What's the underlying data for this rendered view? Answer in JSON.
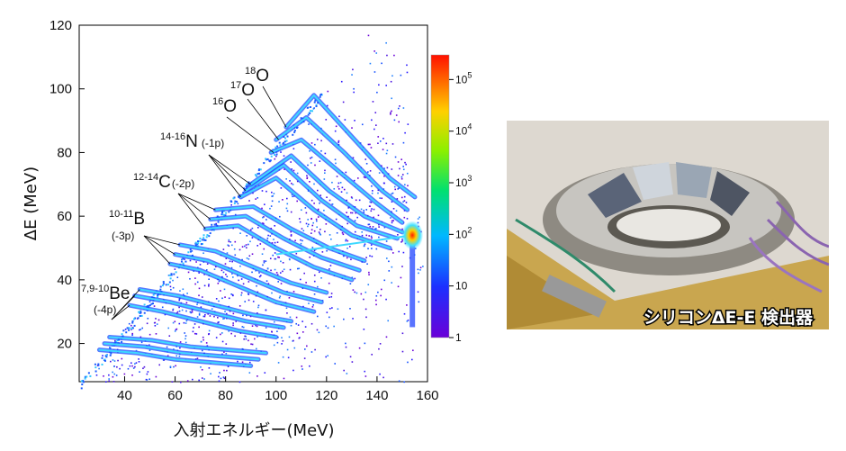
{
  "chart_data": {
    "type": "heatmap",
    "title": "",
    "xlabel": "入射エネルギー(MeV)",
    "ylabel": "ΔE (MeV)",
    "xlim": [
      22,
      160
    ],
    "ylim": [
      8,
      120
    ],
    "x_ticks": [
      40,
      60,
      80,
      100,
      120,
      140,
      160
    ],
    "y_ticks": [
      20,
      40,
      60,
      80,
      100,
      120
    ],
    "colorbar": {
      "scale": "log",
      "range": [
        1,
        300000
      ],
      "ticks": [
        {
          "value": 1,
          "base": "1",
          "exp": ""
        },
        {
          "value": 10,
          "base": "10",
          "exp": ""
        },
        {
          "value": 100,
          "base": "10",
          "exp": "2"
        },
        {
          "value": 1000,
          "base": "10",
          "exp": "3"
        },
        {
          "value": 10000,
          "base": "10",
          "exp": "4"
        },
        {
          "value": 100000,
          "base": "10",
          "exp": "5"
        }
      ]
    },
    "cutoff_line": {
      "x": [
        22,
        118
      ],
      "y": [
        8,
        100
      ]
    },
    "ridges": [
      {
        "group": "O",
        "points": [
          [
            98,
            80
          ],
          [
            110,
            84
          ],
          [
            125,
            74
          ],
          [
            140,
            64
          ],
          [
            150,
            58
          ]
        ]
      },
      {
        "group": "O",
        "points": [
          [
            100,
            84
          ],
          [
            112,
            91
          ],
          [
            127,
            80
          ],
          [
            142,
            68
          ],
          [
            152,
            62
          ]
        ]
      },
      {
        "group": "O",
        "points": [
          [
            104,
            88
          ],
          [
            115,
            98
          ],
          [
            130,
            85
          ],
          [
            145,
            72
          ],
          [
            155,
            66
          ]
        ]
      },
      {
        "group": "N",
        "points": [
          [
            86,
            66
          ],
          [
            100,
            72
          ],
          [
            115,
            62
          ],
          [
            130,
            54
          ],
          [
            145,
            50
          ]
        ]
      },
      {
        "group": "N",
        "points": [
          [
            88,
            68
          ],
          [
            103,
            76
          ],
          [
            118,
            65
          ],
          [
            132,
            57
          ],
          [
            148,
            53
          ]
        ]
      },
      {
        "group": "N",
        "points": [
          [
            90,
            70
          ],
          [
            106,
            79
          ],
          [
            121,
            68
          ],
          [
            135,
            60
          ],
          [
            150,
            55
          ]
        ]
      },
      {
        "group": "C",
        "points": [
          [
            72,
            56
          ],
          [
            85,
            57
          ],
          [
            100,
            50
          ],
          [
            115,
            44
          ],
          [
            130,
            40
          ]
        ]
      },
      {
        "group": "C",
        "points": [
          [
            74,
            59
          ],
          [
            88,
            60
          ],
          [
            103,
            53
          ],
          [
            118,
            47
          ],
          [
            133,
            43
          ]
        ]
      },
      {
        "group": "C",
        "points": [
          [
            76,
            62
          ],
          [
            91,
            63
          ],
          [
            106,
            56
          ],
          [
            121,
            50
          ],
          [
            135,
            46
          ]
        ]
      },
      {
        "group": "B",
        "points": [
          [
            58,
            45
          ],
          [
            70,
            43
          ],
          [
            85,
            38
          ],
          [
            100,
            33
          ],
          [
            115,
            30
          ]
        ]
      },
      {
        "group": "B",
        "points": [
          [
            60,
            48
          ],
          [
            73,
            46
          ],
          [
            88,
            41
          ],
          [
            103,
            36
          ],
          [
            118,
            33
          ]
        ]
      },
      {
        "group": "B",
        "points": [
          [
            62,
            51
          ],
          [
            76,
            49
          ],
          [
            91,
            44
          ],
          [
            106,
            39
          ],
          [
            120,
            36
          ]
        ]
      },
      {
        "group": "Be",
        "points": [
          [
            42,
            32
          ],
          [
            55,
            30
          ],
          [
            70,
            27
          ],
          [
            85,
            24
          ],
          [
            100,
            22
          ]
        ]
      },
      {
        "group": "Be",
        "points": [
          [
            44,
            35
          ],
          [
            58,
            33
          ],
          [
            73,
            30
          ],
          [
            88,
            27
          ],
          [
            103,
            25
          ]
        ]
      },
      {
        "group": "Be",
        "points": [
          [
            46,
            37
          ],
          [
            61,
            35
          ],
          [
            76,
            32
          ],
          [
            91,
            29
          ],
          [
            106,
            27
          ]
        ]
      },
      {
        "group": "low",
        "points": [
          [
            30,
            18
          ],
          [
            45,
            17
          ],
          [
            60,
            15
          ],
          [
            75,
            14
          ],
          [
            90,
            13
          ]
        ]
      },
      {
        "group": "low",
        "points": [
          [
            32,
            20
          ],
          [
            48,
            19
          ],
          [
            63,
            17
          ],
          [
            78,
            16
          ],
          [
            93,
            15
          ]
        ]
      },
      {
        "group": "low",
        "points": [
          [
            34,
            22
          ],
          [
            51,
            21
          ],
          [
            66,
            19
          ],
          [
            81,
            18
          ],
          [
            96,
            17
          ]
        ]
      }
    ],
    "hotspot": {
      "x": 154,
      "y": 54
    },
    "annotations": [
      {
        "id": "o18",
        "sup": "18",
        "text": "O",
        "tail": ""
      },
      {
        "id": "o17",
        "sup": "17",
        "text": "O",
        "tail": ""
      },
      {
        "id": "o16",
        "sup": "16",
        "text": "O",
        "tail": ""
      },
      {
        "id": "n",
        "sup": "14-16",
        "text": "N",
        "tail": "(-1p)"
      },
      {
        "id": "c",
        "sup": "12-14",
        "text": "C",
        "tail": "(-2p)"
      },
      {
        "id": "b",
        "sup": "10-11",
        "text": "B",
        "tail": "(-3p)"
      },
      {
        "id": "be",
        "sup": "7,9-10",
        "text": "Be",
        "tail": "(-4p)"
      }
    ]
  },
  "photo": {
    "caption": "シリコンΔE-E 検出器",
    "subject": "silicon detector ring photograph"
  }
}
